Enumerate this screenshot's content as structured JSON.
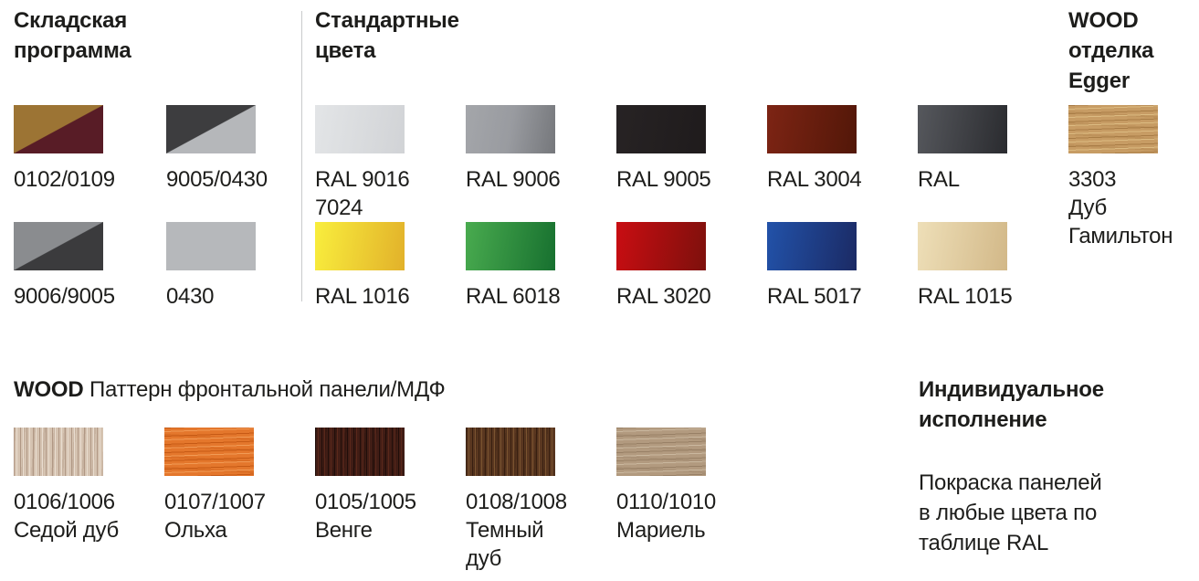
{
  "page": {
    "text_color": "#1d1d1b",
    "divider_color": "#c9cacc",
    "background": "#ffffff"
  },
  "warehouse": {
    "title_lines": [
      "Складская",
      "программа"
    ],
    "swatches": [
      {
        "label_lines": [
          "0102/0109"
        ],
        "type": "diagonal",
        "colors": [
          "#9c7434",
          "#581c26"
        ]
      },
      {
        "label_lines": [
          "9005/0430"
        ],
        "type": "diagonal",
        "colors": [
          "#3d3d3f",
          "#b5b7ba"
        ]
      },
      {
        "label_lines": [
          "9006/9005"
        ],
        "type": "diagonal",
        "colors": [
          "#8a8c8f",
          "#3b3b3d"
        ]
      },
      {
        "label_lines": [
          "0430"
        ],
        "type": "solid",
        "colors": [
          "#b6b8bb"
        ]
      }
    ]
  },
  "standard": {
    "title_lines": [
      "Стандартные",
      "цвета"
    ],
    "swatches": [
      {
        "label_lines": [
          "RAL 9016",
          "7024"
        ],
        "type": "gradient",
        "colors": [
          "#e3e5e7",
          "#d1d3d6"
        ]
      },
      {
        "label_lines": [
          "RAL 9006"
        ],
        "type": "gradient",
        "colors": [
          "#a4a6aa",
          "#999ba0",
          "#75777b"
        ]
      },
      {
        "label_lines": [
          "RAL 9005"
        ],
        "type": "gradient",
        "colors": [
          "#272324",
          "#1f1b1c"
        ]
      },
      {
        "label_lines": [
          "RAL 3004"
        ],
        "type": "gradient",
        "colors": [
          "#7d2414",
          "#521708"
        ]
      },
      {
        "label_lines": [
          "RAL"
        ],
        "type": "gradient",
        "colors": [
          "#56585d",
          "#2a2b2f"
        ]
      },
      {
        "label_lines": [
          "RAL 1016"
        ],
        "type": "gradient",
        "colors": [
          "#f9ee3d",
          "#e2b12a"
        ]
      },
      {
        "label_lines": [
          "RAL 6018"
        ],
        "type": "gradient",
        "colors": [
          "#49ab4f",
          "#17702f"
        ]
      },
      {
        "label_lines": [
          "RAL 3020"
        ],
        "type": "gradient",
        "colors": [
          "#c90d12",
          "#7d100c"
        ]
      },
      {
        "label_lines": [
          "RAL 5017"
        ],
        "type": "gradient",
        "colors": [
          "#2252a9",
          "#1b2a64"
        ]
      },
      {
        "label_lines": [
          "RAL 1015"
        ],
        "type": "gradient",
        "colors": [
          "#eedfb8",
          "#d2b888"
        ]
      }
    ]
  },
  "egger": {
    "title_lines": [
      "WOOD",
      "отделка",
      "Egger"
    ],
    "swatches": [
      {
        "label_lines": [
          "3303",
          "Дуб",
          "Гамильтон"
        ],
        "type": "wood-h",
        "colors": [
          "#c79c64",
          "#a87c46",
          "#dcbb82"
        ]
      }
    ]
  },
  "wood_pattern": {
    "title_bold": "WOOD",
    "title_rest": " Паттерн фронтальной панели/МДФ",
    "swatches": [
      {
        "label_lines": [
          "0106/1006",
          "Седой дуб"
        ],
        "type": "wood-v",
        "colors": [
          "#d5c3b1",
          "#b09784",
          "#e9ddd0"
        ]
      },
      {
        "label_lines": [
          "0107/1007",
          "Ольха"
        ],
        "type": "wood-h",
        "colors": [
          "#e4772c",
          "#c65a15",
          "#f19b56"
        ]
      },
      {
        "label_lines": [
          "0105/1005",
          "Венге"
        ],
        "type": "wood-v",
        "colors": [
          "#411d15",
          "#200e0a",
          "#5a281b"
        ]
      },
      {
        "label_lines": [
          "0108/1008",
          "Темный",
          "дуб"
        ],
        "type": "wood-v",
        "colors": [
          "#5a3720",
          "#371f10",
          "#7a5430"
        ]
      },
      {
        "label_lines": [
          "0110/1010",
          "Мариель"
        ],
        "type": "wood-h",
        "colors": [
          "#b29a7f",
          "#988066",
          "#cab89f"
        ]
      }
    ]
  },
  "custom": {
    "title_lines": [
      "Индивидуальное",
      "исполнение"
    ],
    "body_lines": [
      "Покраска панелей",
      "в любые цвета по",
      "таблице RAL"
    ]
  }
}
